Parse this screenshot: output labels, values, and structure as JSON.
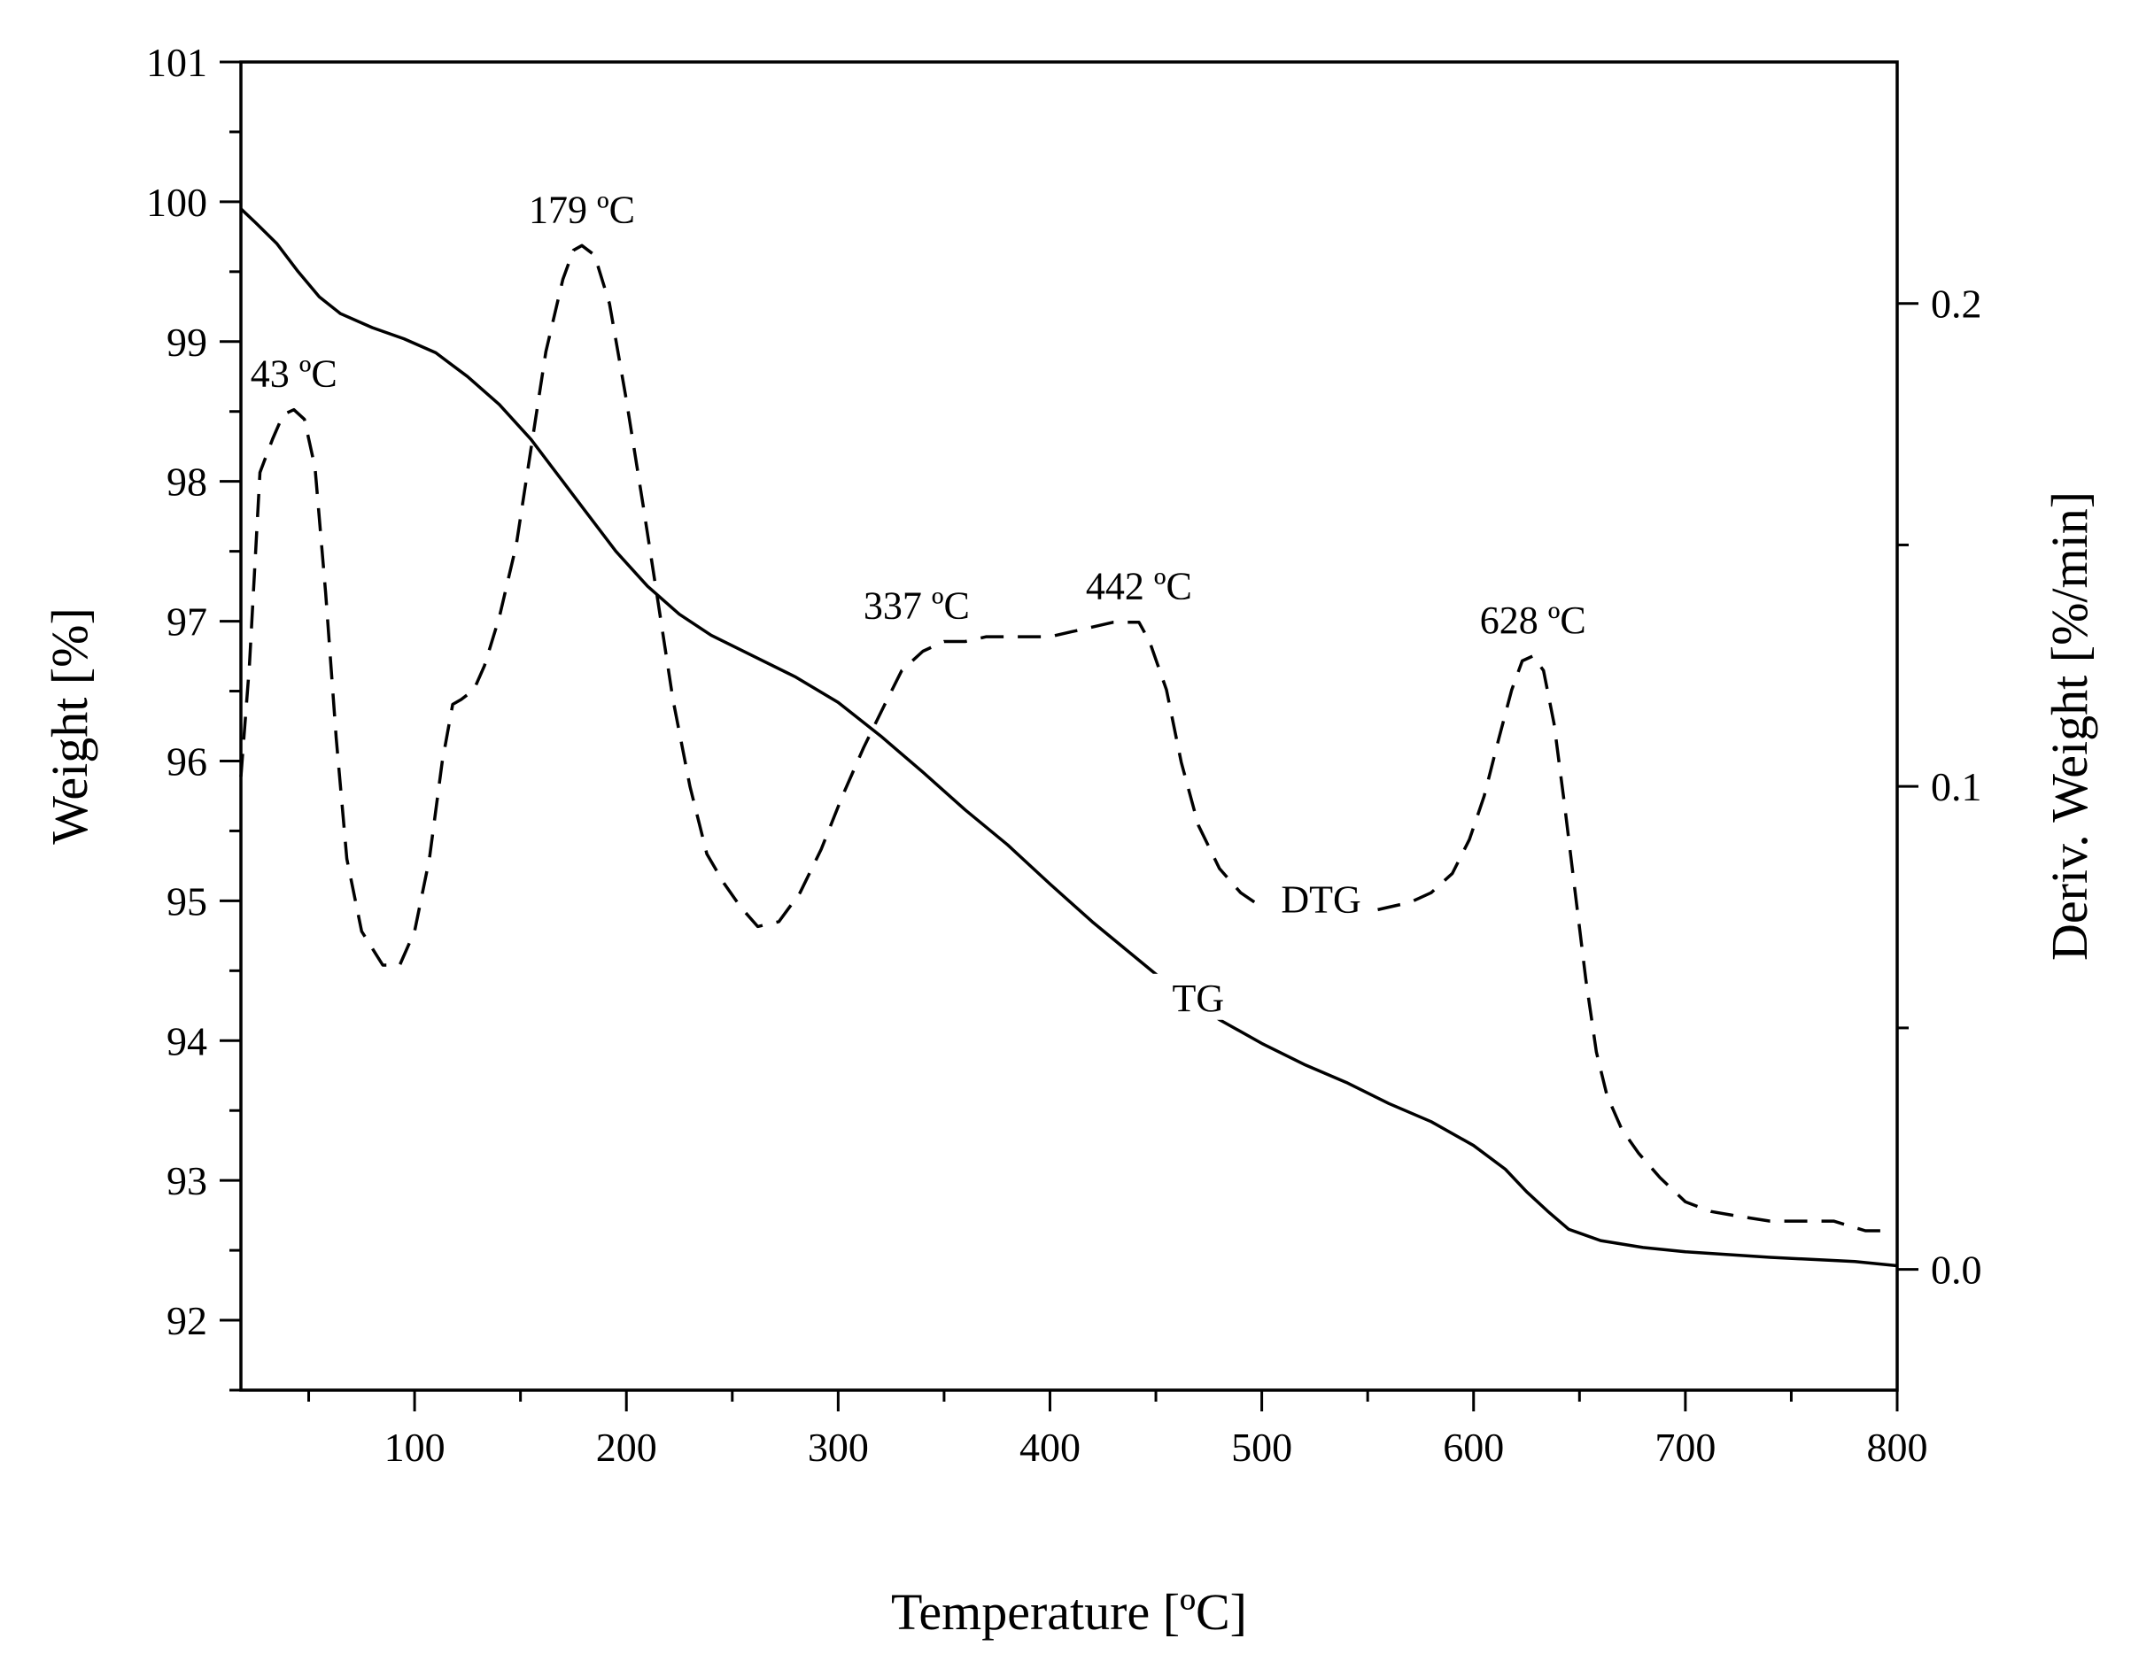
{
  "chart_data": {
    "type": "line",
    "title": "",
    "xlabel": "Temperature [ºC]",
    "ylabel": "Weight [%]",
    "y2label": "Deriv. Weight [%/min]",
    "xlim": [
      18,
      800
    ],
    "ylim": [
      91.5,
      101
    ],
    "y2lim": [
      -0.025,
      0.25
    ],
    "x_ticks": [
      100,
      200,
      300,
      400,
      500,
      600,
      700,
      800
    ],
    "y_ticks": [
      92,
      93,
      94,
      95,
      96,
      97,
      98,
      99,
      100,
      101
    ],
    "y2_ticks": [
      "0.0",
      "0.1",
      "0.2"
    ],
    "grid": false,
    "legend": "none",
    "series": [
      {
        "name": "TG",
        "axis": "left",
        "style": "solid",
        "label_at": [
          470,
          94.25
        ],
        "points": [
          [
            18,
            99.95
          ],
          [
            25,
            99.85
          ],
          [
            35,
            99.7
          ],
          [
            45,
            99.5
          ],
          [
            55,
            99.32
          ],
          [
            65,
            99.2
          ],
          [
            80,
            99.1
          ],
          [
            95,
            99.02
          ],
          [
            110,
            98.92
          ],
          [
            125,
            98.75
          ],
          [
            140,
            98.55
          ],
          [
            155,
            98.3
          ],
          [
            165,
            98.1
          ],
          [
            180,
            97.8
          ],
          [
            195,
            97.5
          ],
          [
            210,
            97.25
          ],
          [
            225,
            97.05
          ],
          [
            240,
            96.9
          ],
          [
            260,
            96.75
          ],
          [
            280,
            96.6
          ],
          [
            300,
            96.42
          ],
          [
            320,
            96.18
          ],
          [
            340,
            95.92
          ],
          [
            360,
            95.65
          ],
          [
            380,
            95.4
          ],
          [
            400,
            95.12
          ],
          [
            420,
            94.85
          ],
          [
            440,
            94.6
          ],
          [
            460,
            94.35
          ],
          [
            480,
            94.15
          ],
          [
            500,
            93.98
          ],
          [
            520,
            93.83
          ],
          [
            540,
            93.7
          ],
          [
            560,
            93.55
          ],
          [
            580,
            93.42
          ],
          [
            600,
            93.25
          ],
          [
            615,
            93.08
          ],
          [
            625,
            92.92
          ],
          [
            635,
            92.78
          ],
          [
            645,
            92.65
          ],
          [
            660,
            92.57
          ],
          [
            680,
            92.52
          ],
          [
            700,
            92.49
          ],
          [
            740,
            92.45
          ],
          [
            780,
            92.42
          ],
          [
            800,
            92.39
          ]
        ]
      },
      {
        "name": "DTG",
        "axis": "right",
        "style": "dashed",
        "label_at": [
          528,
          0.075
        ],
        "points": [
          [
            18,
            0.102
          ],
          [
            22,
            0.125
          ],
          [
            27,
            0.165
          ],
          [
            33,
            0.172
          ],
          [
            38,
            0.177
          ],
          [
            43,
            0.178
          ],
          [
            48,
            0.176
          ],
          [
            53,
            0.166
          ],
          [
            58,
            0.14
          ],
          [
            63,
            0.11
          ],
          [
            68,
            0.085
          ],
          [
            75,
            0.07
          ],
          [
            85,
            0.063
          ],
          [
            93,
            0.063
          ],
          [
            100,
            0.07
          ],
          [
            107,
            0.085
          ],
          [
            113,
            0.105
          ],
          [
            118,
            0.117
          ],
          [
            122,
            0.118
          ],
          [
            128,
            0.12
          ],
          [
            133,
            0.125
          ],
          [
            140,
            0.135
          ],
          [
            148,
            0.15
          ],
          [
            155,
            0.17
          ],
          [
            162,
            0.19
          ],
          [
            170,
            0.205
          ],
          [
            175,
            0.211
          ],
          [
            179,
            0.212
          ],
          [
            185,
            0.21
          ],
          [
            192,
            0.2
          ],
          [
            200,
            0.18
          ],
          [
            208,
            0.158
          ],
          [
            215,
            0.138
          ],
          [
            222,
            0.118
          ],
          [
            230,
            0.1
          ],
          [
            238,
            0.086
          ],
          [
            246,
            0.08
          ],
          [
            254,
            0.075
          ],
          [
            262,
            0.071
          ],
          [
            272,
            0.072
          ],
          [
            282,
            0.078
          ],
          [
            292,
            0.087
          ],
          [
            302,
            0.098
          ],
          [
            312,
            0.108
          ],
          [
            322,
            0.117
          ],
          [
            330,
            0.124
          ],
          [
            340,
            0.128
          ],
          [
            350,
            0.13
          ],
          [
            360,
            0.13
          ],
          [
            370,
            0.131
          ],
          [
            380,
            0.131
          ],
          [
            390,
            0.131
          ],
          [
            400,
            0.131
          ],
          [
            410,
            0.132
          ],
          [
            420,
            0.133
          ],
          [
            430,
            0.134
          ],
          [
            437,
            0.134
          ],
          [
            442,
            0.134
          ],
          [
            447,
            0.13
          ],
          [
            455,
            0.12
          ],
          [
            462,
            0.105
          ],
          [
            470,
            0.092
          ],
          [
            480,
            0.083
          ],
          [
            490,
            0.078
          ],
          [
            500,
            0.075
          ],
          [
            510,
            0.074
          ],
          [
            520,
            0.074
          ],
          [
            530,
            0.074
          ],
          [
            540,
            0.074
          ],
          [
            550,
            0.074
          ],
          [
            560,
            0.075
          ],
          [
            570,
            0.076
          ],
          [
            580,
            0.078
          ],
          [
            590,
            0.082
          ],
          [
            598,
            0.089
          ],
          [
            605,
            0.098
          ],
          [
            612,
            0.11
          ],
          [
            618,
            0.12
          ],
          [
            623,
            0.126
          ],
          [
            628,
            0.127
          ],
          [
            633,
            0.124
          ],
          [
            638,
            0.113
          ],
          [
            643,
            0.096
          ],
          [
            648,
            0.078
          ],
          [
            653,
            0.06
          ],
          [
            658,
            0.045
          ],
          [
            663,
            0.036
          ],
          [
            670,
            0.029
          ],
          [
            678,
            0.024
          ],
          [
            688,
            0.019
          ],
          [
            700,
            0.014
          ],
          [
            712,
            0.012
          ],
          [
            725,
            0.011
          ],
          [
            740,
            0.01
          ],
          [
            755,
            0.01
          ],
          [
            770,
            0.01
          ],
          [
            785,
            0.008
          ],
          [
            792,
            0.008
          ]
        ]
      }
    ],
    "annotations": [
      {
        "text": "43 ºC",
        "x": 43,
        "axis": "right",
        "y": 0.178
      },
      {
        "text": "179 ºC",
        "x": 179,
        "axis": "right",
        "y": 0.212
      },
      {
        "text": "337 ºC",
        "x": 337,
        "axis": "right",
        "y": 0.13
      },
      {
        "text": "442 ºC",
        "x": 442,
        "axis": "right",
        "y": 0.134
      },
      {
        "text": "628 ºC",
        "x": 628,
        "axis": "right",
        "y": 0.127
      }
    ]
  }
}
